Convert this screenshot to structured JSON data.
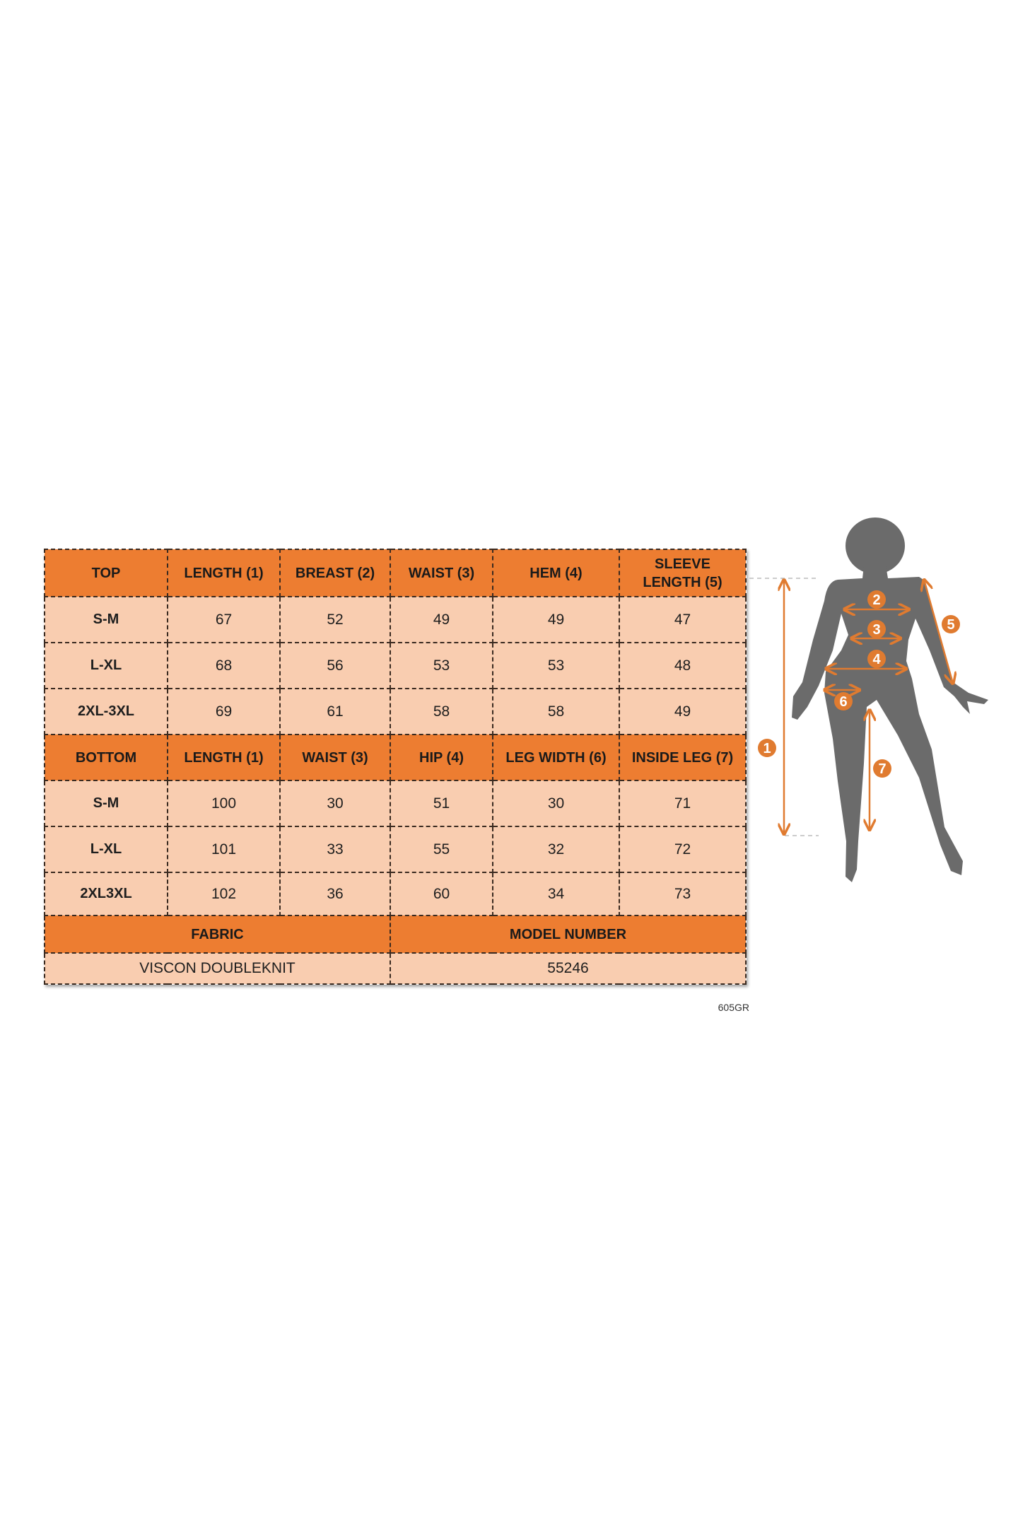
{
  "top_table": {
    "headers": [
      "TOP",
      "LENGTH (1)",
      "BREAST (2)",
      "WAIST (3)",
      "HEM (4)",
      "SLEEVE LENGTH (5)"
    ],
    "rows": [
      [
        "S-M",
        "67",
        "52",
        "49",
        "49",
        "47"
      ],
      [
        "L-XL",
        "68",
        "56",
        "53",
        "53",
        "48"
      ],
      [
        "2XL-3XL",
        "69",
        "61",
        "58",
        "58",
        "49"
      ]
    ]
  },
  "bottom_table": {
    "headers": [
      "BOTTOM",
      "LENGTH (1)",
      "WAIST (3)",
      "HIP (4)",
      "LEG WIDTH (6)",
      "INSIDE LEG (7)"
    ],
    "rows": [
      [
        "S-M",
        "100",
        "30",
        "51",
        "30",
        "71"
      ],
      [
        "L-XL",
        "101",
        "33",
        "55",
        "32",
        "72"
      ],
      [
        "2XL3XL",
        "102",
        "36",
        "60",
        "34",
        "73"
      ]
    ]
  },
  "info": {
    "fabric_label": "FABRIC",
    "model_label": "MODEL NUMBER",
    "fabric": "VISCON DOUBLEKNIT",
    "model_number": "55246"
  },
  "code": "605GR",
  "figure": {
    "markers": [
      "1",
      "2",
      "3",
      "4",
      "5",
      "6",
      "7"
    ]
  },
  "colors": {
    "header": "#ED7D31",
    "cell": "#F9CDB0",
    "silhouette": "#6b6b6b",
    "measure": "#E07B30"
  }
}
